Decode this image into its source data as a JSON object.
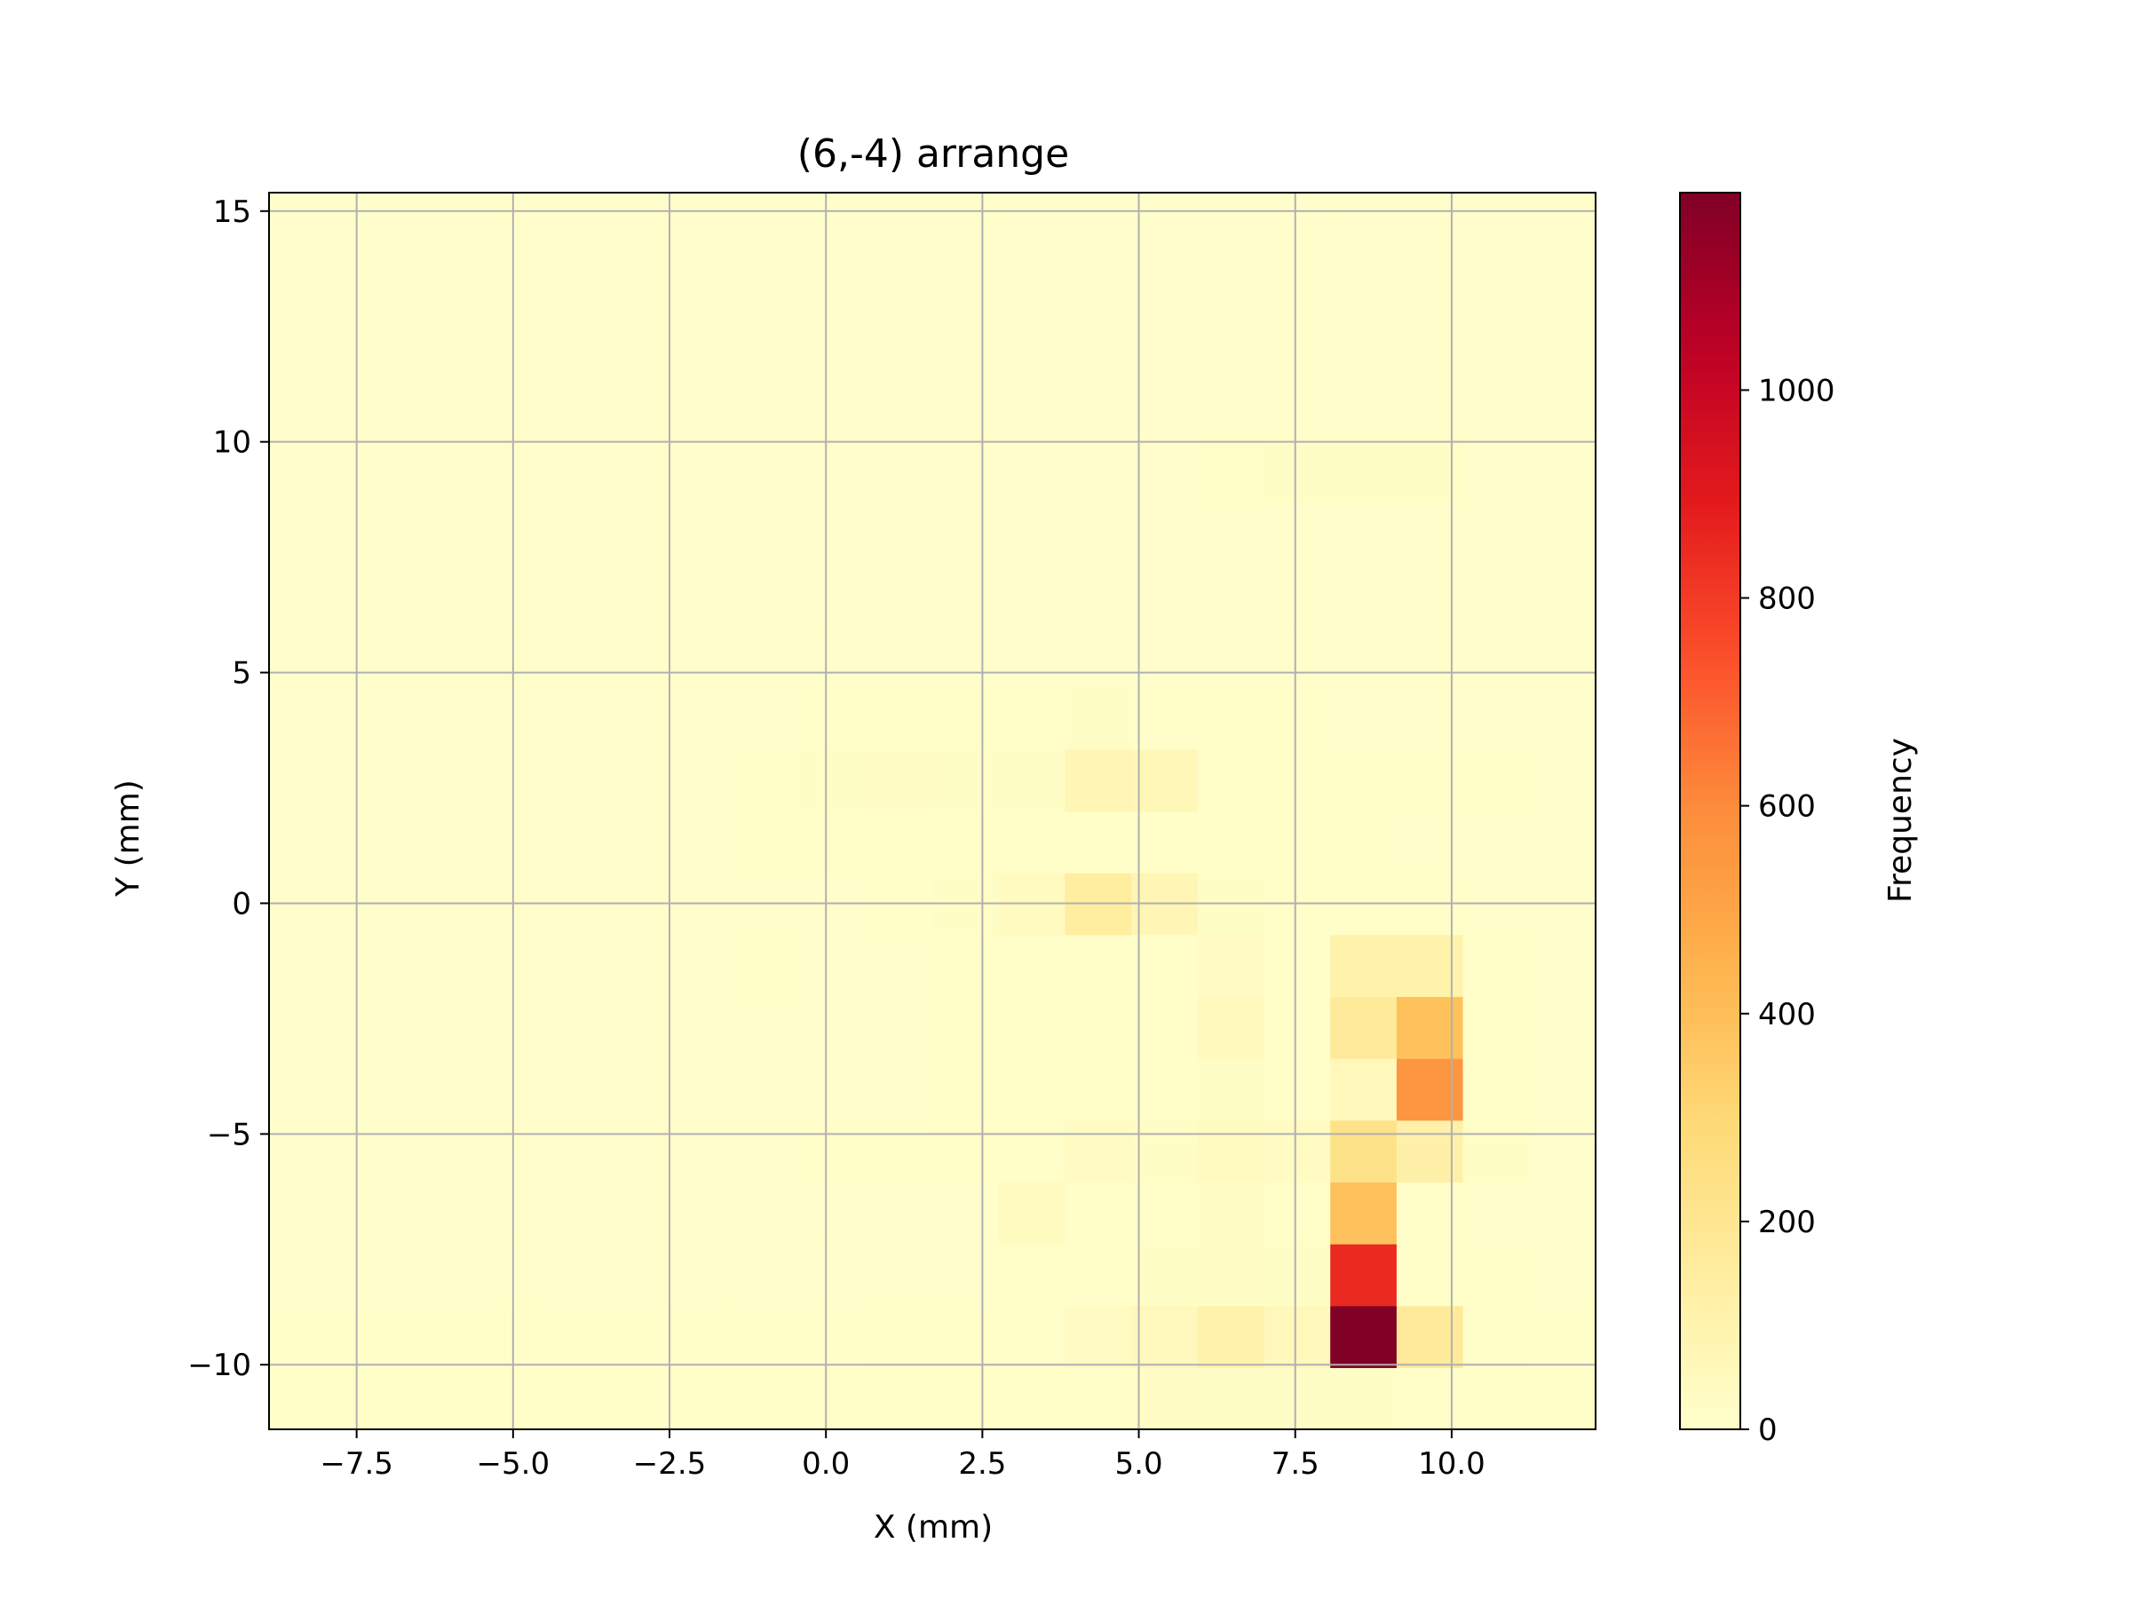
{
  "chart_data": {
    "type": "heatmap",
    "title": "(6,-4) arrange",
    "xlabel": "X (mm)",
    "ylabel": "Y (mm)",
    "colorbar_label": "Frequency",
    "colormap": "YlOrRd",
    "xlim": [
      -8.9,
      12.3
    ],
    "ylim": [
      -11.4,
      15.4
    ],
    "x_ticks": [
      -7.5,
      -5.0,
      -2.5,
      0.0,
      2.5,
      5.0,
      7.5,
      10.0
    ],
    "x_tick_labels": [
      "−7.5",
      "−5.0",
      "−2.5",
      "0.0",
      "2.5",
      "5.0",
      "7.5",
      "10.0"
    ],
    "y_ticks": [
      15,
      10,
      5,
      0,
      -5,
      -10
    ],
    "y_tick_labels": [
      "15",
      "10",
      "5",
      "0",
      "−5",
      "−10"
    ],
    "colorbar_range": [
      0,
      1190
    ],
    "colorbar_ticks": [
      0,
      200,
      400,
      600,
      800,
      1000
    ],
    "colorbar_tick_labels": [
      "0",
      "200",
      "400",
      "600",
      "800",
      "1000"
    ],
    "grid": true,
    "x_bin_edges": [
      -8.9,
      -7.84,
      -6.78,
      -5.72,
      -4.66,
      -3.6,
      -2.54,
      -1.48,
      -0.42,
      0.64,
      1.7,
      2.76,
      3.82,
      4.88,
      5.94,
      7.0,
      8.06,
      9.12,
      10.18,
      11.24,
      12.3
    ],
    "y_bin_edges": [
      -11.4,
      -10.06,
      -8.72,
      -7.38,
      -6.04,
      -4.7,
      -3.36,
      -2.02,
      -0.68,
      0.66,
      2.0,
      3.34,
      4.68,
      6.02,
      7.36,
      8.7,
      10.04,
      11.38,
      12.72,
      14.06,
      15.4
    ],
    "values_note": "rows listed from bottom (y=-11.4) to top (y=15.4)",
    "values": [
      [
        15,
        15,
        15,
        15,
        15,
        15,
        15,
        15,
        15,
        15,
        15,
        15,
        15,
        25,
        20,
        20,
        20,
        15,
        15,
        15
      ],
      [
        10,
        10,
        10,
        10,
        10,
        10,
        10,
        10,
        10,
        15,
        15,
        15,
        35,
        55,
        110,
        60,
        1190,
        170,
        15,
        10
      ],
      [
        5,
        5,
        5,
        5,
        5,
        5,
        5,
        5,
        5,
        5,
        5,
        10,
        15,
        20,
        25,
        20,
        850,
        10,
        10,
        5
      ],
      [
        5,
        5,
        5,
        5,
        5,
        5,
        5,
        5,
        5,
        5,
        5,
        40,
        15,
        15,
        25,
        15,
        390,
        10,
        5,
        5
      ],
      [
        5,
        5,
        5,
        5,
        5,
        5,
        5,
        5,
        10,
        10,
        15,
        15,
        30,
        20,
        45,
        30,
        230,
        120,
        20,
        5
      ],
      [
        5,
        5,
        5,
        5,
        5,
        5,
        5,
        5,
        5,
        5,
        10,
        10,
        10,
        15,
        20,
        15,
        60,
        560,
        10,
        5
      ],
      [
        5,
        5,
        5,
        5,
        5,
        5,
        5,
        5,
        5,
        5,
        10,
        10,
        10,
        10,
        50,
        15,
        170,
        390,
        15,
        5
      ],
      [
        5,
        5,
        5,
        5,
        5,
        5,
        5,
        10,
        5,
        5,
        10,
        10,
        10,
        15,
        30,
        15,
        110,
        110,
        15,
        5
      ],
      [
        5,
        5,
        5,
        5,
        5,
        5,
        5,
        5,
        5,
        10,
        20,
        40,
        150,
        80,
        20,
        15,
        15,
        15,
        5,
        5
      ],
      [
        5,
        5,
        5,
        5,
        5,
        5,
        5,
        10,
        15,
        15,
        15,
        15,
        15,
        15,
        15,
        15,
        10,
        5,
        5,
        5
      ],
      [
        5,
        5,
        5,
        5,
        5,
        5,
        5,
        15,
        20,
        25,
        20,
        20,
        80,
        70,
        15,
        15,
        15,
        10,
        10,
        5
      ],
      [
        5,
        5,
        5,
        5,
        5,
        5,
        5,
        5,
        10,
        10,
        10,
        15,
        20,
        15,
        10,
        10,
        5,
        5,
        5,
        5
      ],
      [
        5,
        5,
        5,
        5,
        5,
        5,
        5,
        5,
        5,
        5,
        5,
        5,
        5,
        5,
        5,
        5,
        5,
        5,
        5,
        5
      ],
      [
        5,
        5,
        5,
        5,
        5,
        5,
        5,
        5,
        5,
        5,
        5,
        5,
        5,
        5,
        5,
        5,
        5,
        5,
        5,
        5
      ],
      [
        5,
        5,
        5,
        5,
        5,
        5,
        5,
        5,
        5,
        5,
        5,
        5,
        5,
        5,
        5,
        5,
        5,
        5,
        5,
        5
      ],
      [
        5,
        5,
        5,
        5,
        5,
        5,
        5,
        5,
        5,
        5,
        5,
        5,
        5,
        5,
        10,
        20,
        20,
        20,
        5,
        5
      ],
      [
        5,
        5,
        5,
        5,
        5,
        5,
        5,
        5,
        5,
        5,
        5,
        5,
        5,
        5,
        5,
        5,
        5,
        5,
        5,
        5
      ],
      [
        5,
        5,
        5,
        5,
        5,
        5,
        5,
        5,
        5,
        5,
        5,
        5,
        5,
        5,
        5,
        5,
        5,
        5,
        5,
        5
      ],
      [
        5,
        5,
        5,
        5,
        5,
        5,
        5,
        5,
        5,
        5,
        5,
        5,
        5,
        5,
        5,
        5,
        5,
        5,
        5,
        5
      ],
      [
        5,
        5,
        5,
        5,
        5,
        5,
        5,
        5,
        5,
        5,
        5,
        5,
        5,
        5,
        5,
        5,
        5,
        5,
        5,
        5
      ]
    ]
  }
}
